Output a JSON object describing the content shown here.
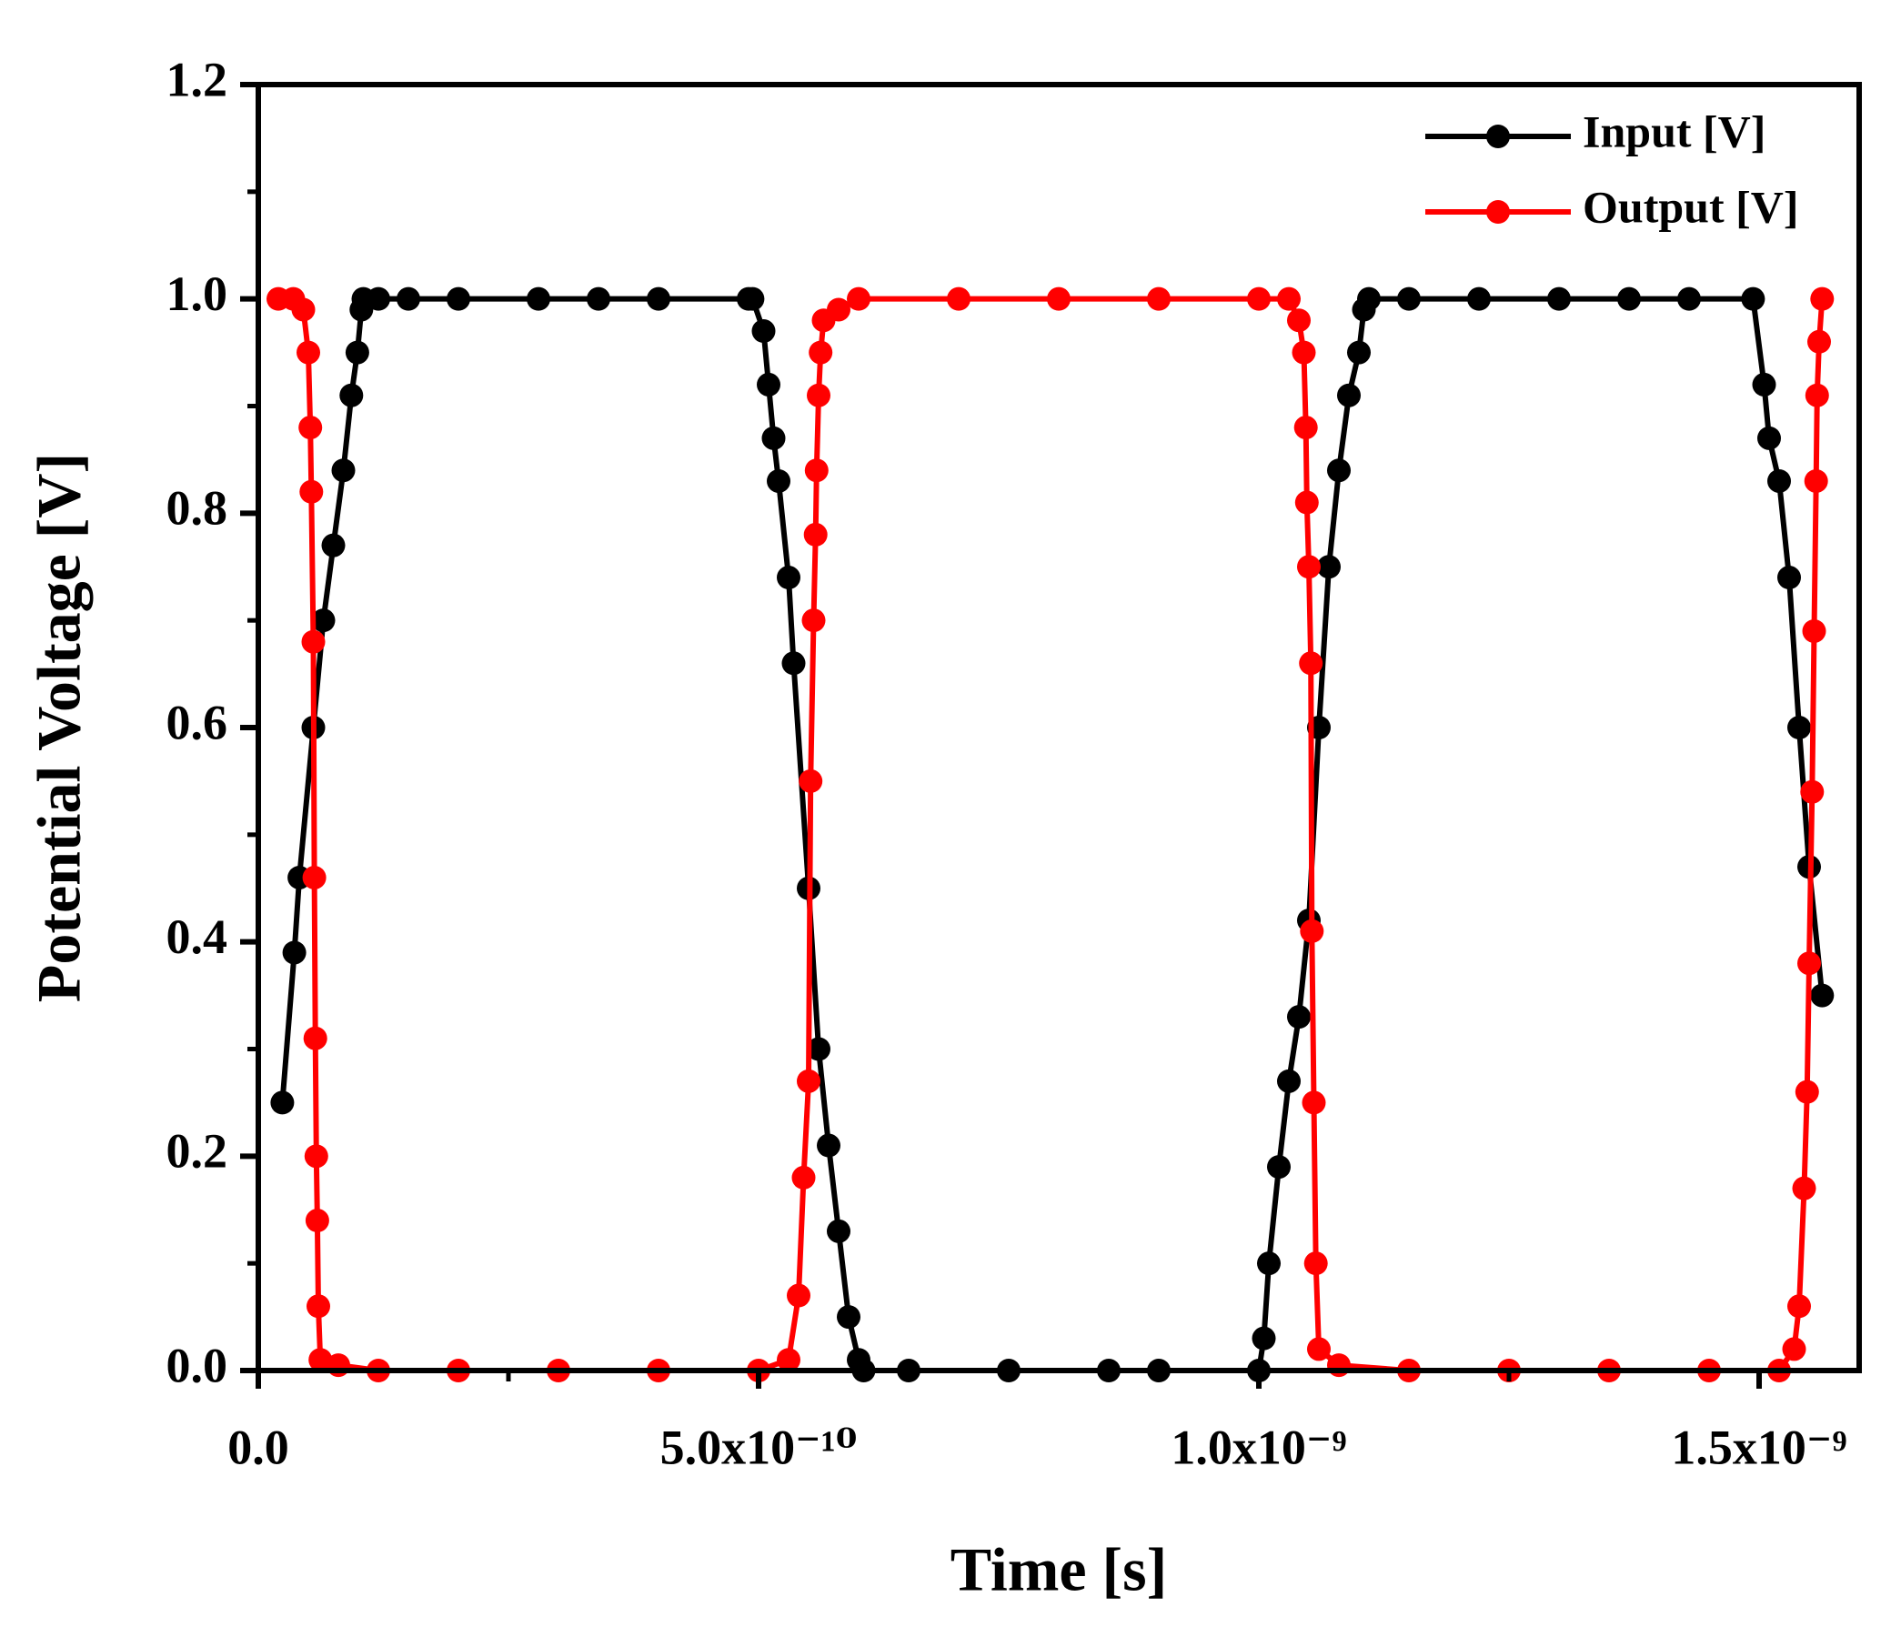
{
  "chart_data": {
    "type": "line",
    "xlabel": "Time [s]",
    "ylabel": "Potential Voltage [V]",
    "xlim": [
      0,
      1.6e-09
    ],
    "ylim": [
      0,
      1.2
    ],
    "xticks": [
      {
        "value": 0,
        "label": "0.0"
      },
      {
        "value": 5e-10,
        "label": "5.0x10⁻¹⁰"
      },
      {
        "value": 1e-09,
        "label": "1.0x10⁻⁹"
      },
      {
        "value": 1.5e-09,
        "label": "1.5x10⁻⁹"
      }
    ],
    "yticks": [
      {
        "value": 0,
        "label": "0.0"
      },
      0.2,
      0.4,
      0.6,
      0.8,
      {
        "value": 1,
        "label": "1.0"
      },
      1.2
    ],
    "legend": "upper right",
    "series": [
      {
        "name": "Input [V]",
        "color": "#000000",
        "x": [
          2.4e-11,
          3.6e-11,
          4.1e-11,
          5.5e-11,
          6.5e-11,
          7.5e-11,
          8.5e-11,
          9.3e-11,
          9.9e-11,
          1.03e-10,
          1.05e-10,
          1.2e-10,
          1.5e-10,
          2e-10,
          2.8e-10,
          3.4e-10,
          4e-10,
          4.9e-10,
          4.94e-10,
          5.05e-10,
          5.1e-10,
          5.15e-10,
          5.2e-10,
          5.3e-10,
          5.35e-10,
          5.5e-10,
          5.6e-10,
          5.7e-10,
          5.8e-10,
          5.9e-10,
          6e-10,
          6.05e-10,
          6.5e-10,
          7.5e-10,
          8.5e-10,
          9e-10,
          1e-09,
          1.005e-09,
          1.01e-09,
          1.02e-09,
          1.03e-09,
          1.04e-09,
          1.05e-09,
          1.06e-09,
          1.07e-09,
          1.08e-09,
          1.09e-09,
          1.1e-09,
          1.105e-09,
          1.11e-09,
          1.15e-09,
          1.22e-09,
          1.3e-09,
          1.37e-09,
          1.43e-09,
          1.494e-09,
          1.505e-09,
          1.51e-09,
          1.52e-09,
          1.53e-09,
          1.54e-09,
          1.55e-09,
          1.563e-09
        ],
        "values": [
          0.25,
          0.39,
          0.46,
          0.6,
          0.7,
          0.77,
          0.84,
          0.91,
          0.95,
          0.99,
          1.0,
          1.0,
          1.0,
          1.0,
          1.0,
          1.0,
          1.0,
          1.0,
          1.0,
          0.97,
          0.92,
          0.87,
          0.83,
          0.74,
          0.66,
          0.45,
          0.3,
          0.21,
          0.13,
          0.05,
          0.01,
          0.0,
          0.0,
          0.0,
          0.0,
          0.0,
          0.0,
          0.03,
          0.1,
          0.19,
          0.27,
          0.33,
          0.42,
          0.6,
          0.75,
          0.84,
          0.91,
          0.95,
          0.99,
          1.0,
          1.0,
          1.0,
          1.0,
          1.0,
          1.0,
          1.0,
          0.92,
          0.87,
          0.83,
          0.74,
          0.6,
          0.47,
          0.35
        ]
      },
      {
        "name": "Output [V]",
        "color": "#ff0000",
        "x": [
          2e-11,
          3.5e-11,
          4.5e-11,
          5e-11,
          5.2e-11,
          5.3e-11,
          5.5e-11,
          5.6e-11,
          5.7e-11,
          5.8e-11,
          5.9e-11,
          6e-11,
          6.2e-11,
          8e-11,
          1.2e-10,
          2e-10,
          3e-10,
          4e-10,
          5e-10,
          5.3e-10,
          5.4e-10,
          5.45e-10,
          5.5e-10,
          5.52e-10,
          5.55e-10,
          5.57e-10,
          5.58e-10,
          5.6e-10,
          5.62e-10,
          5.65e-10,
          5.8e-10,
          6e-10,
          7e-10,
          8e-10,
          9e-10,
          1e-09,
          1.03e-09,
          1.04e-09,
          1.045e-09,
          1.047e-09,
          1.048e-09,
          1.05e-09,
          1.052e-09,
          1.053e-09,
          1.055e-09,
          1.057e-09,
          1.06e-09,
          1.08e-09,
          1.15e-09,
          1.25e-09,
          1.35e-09,
          1.45e-09,
          1.52e-09,
          1.535e-09,
          1.54e-09,
          1.545e-09,
          1.548e-09,
          1.55e-09,
          1.553e-09,
          1.555e-09,
          1.557e-09,
          1.558e-09,
          1.56e-09,
          1.563e-09
        ],
        "values": [
          1.0,
          1.0,
          0.99,
          0.95,
          0.88,
          0.82,
          0.68,
          0.46,
          0.31,
          0.2,
          0.14,
          0.06,
          0.01,
          0.005,
          0.0,
          0.0,
          0.0,
          0.0,
          0.0,
          0.01,
          0.07,
          0.18,
          0.27,
          0.55,
          0.7,
          0.78,
          0.84,
          0.91,
          0.95,
          0.98,
          0.99,
          1.0,
          1.0,
          1.0,
          1.0,
          1.0,
          1.0,
          0.98,
          0.95,
          0.88,
          0.81,
          0.75,
          0.66,
          0.41,
          0.25,
          0.1,
          0.02,
          0.005,
          0.0,
          0.0,
          0.0,
          0.0,
          0.0,
          0.02,
          0.06,
          0.17,
          0.26,
          0.38,
          0.54,
          0.69,
          0.83,
          0.91,
          0.96,
          1.0
        ]
      }
    ]
  }
}
